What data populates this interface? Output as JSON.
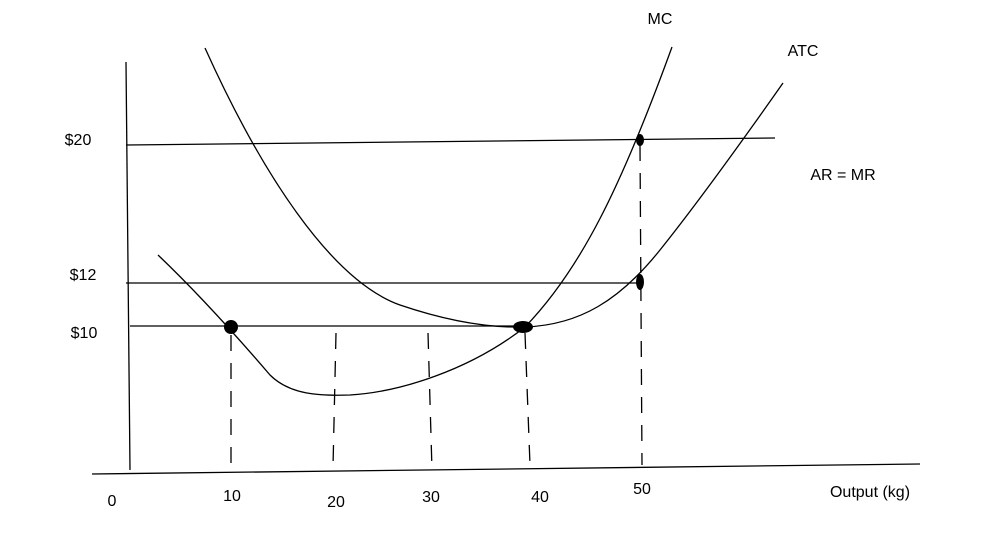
{
  "y_axis_labels": [
    "$20",
    "$12",
    "$10"
  ],
  "x_axis_labels": [
    "0",
    "10",
    "20",
    "30",
    "40",
    "50"
  ],
  "x_axis_title": "Output (kg)",
  "curve_labels": {
    "mc": "MC",
    "atc": "ATC",
    "ar_mr": "AR = MR"
  }
}
